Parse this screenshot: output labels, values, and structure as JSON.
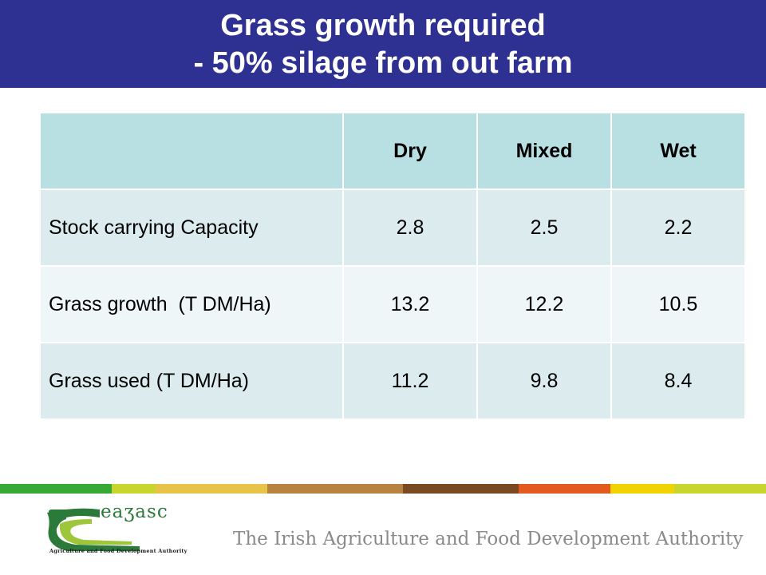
{
  "slide": {
    "title_line1": "Grass growth required",
    "title_line2": "- 50% silage from out farm"
  },
  "table": {
    "columns": [
      "",
      "Dry",
      "Mixed",
      "Wet"
    ],
    "rows": [
      {
        "label": "Stock carrying Capacity",
        "values": [
          "2.8",
          "2.5",
          "2.2"
        ]
      },
      {
        "label": "Grass growth  (T DM/Ha)",
        "values": [
          "13.2",
          "12.2",
          "10.5"
        ]
      },
      {
        "label": "Grass used (T DM/Ha)",
        "values": [
          "11.2",
          "9.8",
          "8.4"
        ]
      }
    ]
  },
  "footer": {
    "logo_text": "eaʒasc",
    "logo_subtitle": "Agriculture and Food Development Authority",
    "authority_text": "The Irish Agriculture and Food Development Authority"
  },
  "colors": {
    "title_background": "#2e3192",
    "header_cell": "#b8dfe2",
    "row_odd": "#dcecee",
    "row_even": "#eef6f7",
    "stripes": [
      "#39a935",
      "#c8d52e",
      "#e8c34a",
      "#b8833e",
      "#7a4a23",
      "#e35a1f",
      "#f0d400",
      "#c8d52e"
    ]
  }
}
